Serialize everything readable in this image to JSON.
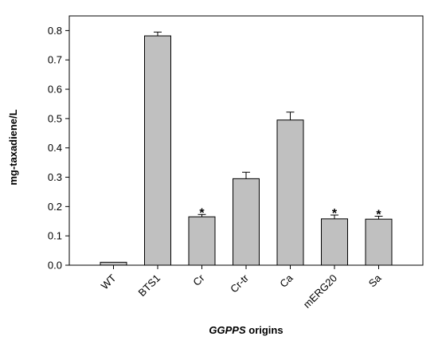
{
  "chart_data": {
    "type": "bar",
    "title": "",
    "xlabel": "GGPPS origins",
    "xlabel_parts": [
      {
        "text": "GGPPS",
        "italic": true
      },
      {
        "text": " origins",
        "italic": false
      }
    ],
    "ylabel": "mg-taxadiene/L",
    "ylim": [
      0,
      0.85
    ],
    "yticks": [
      0.0,
      0.1,
      0.2,
      0.3,
      0.4,
      0.5,
      0.6,
      0.7,
      0.8
    ],
    "ytick_labels": [
      "0.0",
      "0.1",
      "0.2",
      "0.3",
      "0.4",
      "0.5",
      "0.6",
      "0.7",
      "0.8"
    ],
    "categories": [
      "WT",
      "BTS1",
      "Cr",
      "Cr-tr",
      "Ca",
      "mERG20",
      "Sa"
    ],
    "values": [
      0.01,
      0.782,
      0.165,
      0.295,
      0.495,
      0.158,
      0.157
    ],
    "errors": [
      0.0,
      0.013,
      0.008,
      0.022,
      0.027,
      0.013,
      0.01
    ],
    "significance": [
      "",
      "",
      "*",
      "",
      "",
      "*",
      "*"
    ],
    "bar_color": "#c0c0c0",
    "grid": false,
    "legend": "none"
  }
}
